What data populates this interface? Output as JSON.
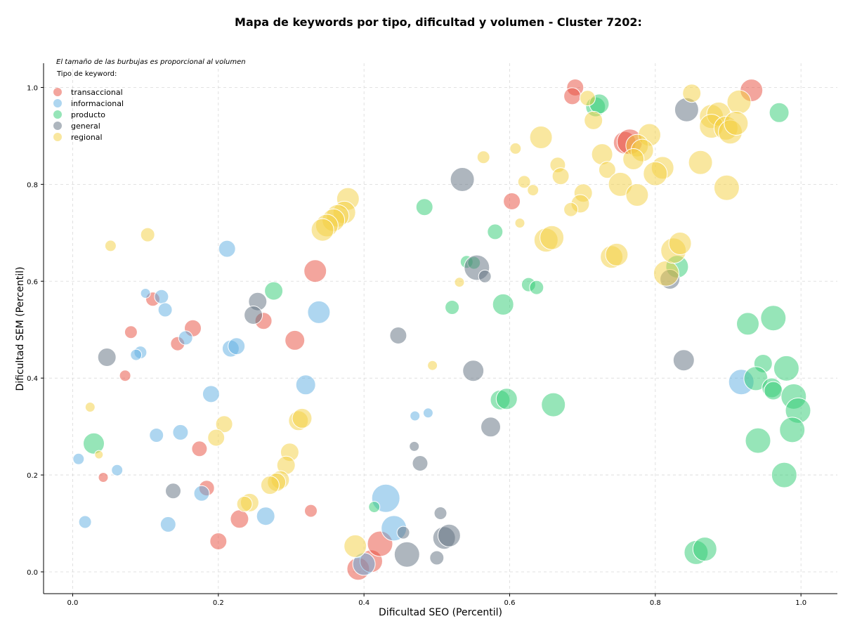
{
  "chart_data": {
    "type": "scatter",
    "title": "Mapa de keywords por tipo, dificultad y volumen - Cluster 7202:",
    "xlabel": "Dificultad SEO (Percentil)",
    "ylabel": "Dificultad SEM (Percentil)",
    "note": "El tamaño de las burbujas es proporcional al volumen",
    "legend_title": "Tipo de keyword:",
    "legend_position": "top-left",
    "grid": true,
    "xlim": [
      -0.04,
      1.05
    ],
    "ylim": [
      -0.045,
      1.05
    ],
    "x_ticks": [
      "0.0",
      "0.2",
      "0.4",
      "0.6",
      "0.8",
      "1.0"
    ],
    "y_ticks": [
      "0.0",
      "0.2",
      "0.4",
      "0.6",
      "0.8",
      "1.0"
    ],
    "series": [
      {
        "name": "transaccional",
        "color": "#e74c3c",
        "points": [
          [
            0.69,
            1.0,
            12
          ],
          [
            0.686,
            0.982,
            12
          ],
          [
            0.932,
            0.994,
            16
          ],
          [
            0.758,
            0.886,
            16
          ],
          [
            0.765,
            0.888,
            18
          ],
          [
            0.603,
            0.765,
            12
          ],
          [
            0.333,
            0.621,
            16
          ],
          [
            0.11,
            0.563,
            10
          ],
          [
            0.262,
            0.518,
            12
          ],
          [
            0.165,
            0.503,
            12
          ],
          [
            0.08,
            0.495,
            9
          ],
          [
            0.144,
            0.471,
            10
          ],
          [
            0.305,
            0.478,
            14
          ],
          [
            0.072,
            0.405,
            8
          ],
          [
            0.174,
            0.254,
            11
          ],
          [
            0.184,
            0.173,
            11
          ],
          [
            0.042,
            0.195,
            7
          ],
          [
            0.229,
            0.109,
            13
          ],
          [
            0.327,
            0.126,
            9
          ],
          [
            0.2,
            0.063,
            12
          ],
          [
            0.392,
            0.006,
            16
          ],
          [
            0.41,
            0.022,
            16
          ],
          [
            0.422,
            0.058,
            18
          ]
        ]
      },
      {
        "name": "informacional",
        "color": "#5dade2",
        "points": [
          [
            0.212,
            0.667,
            12
          ],
          [
            0.1,
            0.575,
            7
          ],
          [
            0.122,
            0.568,
            10
          ],
          [
            0.127,
            0.541,
            10
          ],
          [
            0.155,
            0.483,
            10
          ],
          [
            0.093,
            0.453,
            9
          ],
          [
            0.087,
            0.448,
            8
          ],
          [
            0.217,
            0.461,
            12
          ],
          [
            0.225,
            0.466,
            12
          ],
          [
            0.338,
            0.536,
            16
          ],
          [
            0.32,
            0.386,
            14
          ],
          [
            0.19,
            0.367,
            12
          ],
          [
            0.148,
            0.288,
            11
          ],
          [
            0.115,
            0.282,
            10
          ],
          [
            0.47,
            0.322,
            7
          ],
          [
            0.488,
            0.328,
            7
          ],
          [
            0.008,
            0.233,
            8
          ],
          [
            0.061,
            0.21,
            8
          ],
          [
            0.177,
            0.162,
            11
          ],
          [
            0.265,
            0.115,
            13
          ],
          [
            0.131,
            0.098,
            11
          ],
          [
            0.017,
            0.103,
            9
          ],
          [
            0.43,
            0.152,
            20
          ],
          [
            0.441,
            0.09,
            18
          ],
          [
            0.4,
            0.016,
            16
          ],
          [
            0.918,
            0.392,
            18
          ]
        ]
      },
      {
        "name": "producto",
        "color": "#2ecc71",
        "points": [
          [
            0.718,
            0.96,
            14
          ],
          [
            0.723,
            0.966,
            14
          ],
          [
            0.97,
            0.948,
            14
          ],
          [
            0.483,
            0.753,
            12
          ],
          [
            0.58,
            0.702,
            11
          ],
          [
            0.541,
            0.64,
            9
          ],
          [
            0.551,
            0.638,
            9
          ],
          [
            0.626,
            0.593,
            10
          ],
          [
            0.637,
            0.587,
            10
          ],
          [
            0.521,
            0.546,
            10
          ],
          [
            0.591,
            0.552,
            15
          ],
          [
            0.276,
            0.58,
            13
          ],
          [
            0.83,
            0.63,
            16
          ],
          [
            0.587,
            0.355,
            14
          ],
          [
            0.596,
            0.357,
            15
          ],
          [
            0.66,
            0.345,
            17
          ],
          [
            0.927,
            0.512,
            16
          ],
          [
            0.962,
            0.524,
            18
          ],
          [
            0.948,
            0.43,
            13
          ],
          [
            0.98,
            0.42,
            18
          ],
          [
            0.938,
            0.399,
            17
          ],
          [
            0.96,
            0.38,
            14
          ],
          [
            0.962,
            0.374,
            13
          ],
          [
            0.99,
            0.362,
            18
          ],
          [
            0.996,
            0.333,
            18
          ],
          [
            0.988,
            0.293,
            18
          ],
          [
            0.941,
            0.271,
            18
          ],
          [
            0.977,
            0.2,
            18
          ],
          [
            0.856,
            0.04,
            17
          ],
          [
            0.868,
            0.047,
            17
          ],
          [
            0.029,
            0.265,
            15
          ],
          [
            0.414,
            0.134,
            8
          ]
        ]
      },
      {
        "name": "general",
        "color": "#5d6d7e",
        "points": [
          [
            0.843,
            0.954,
            17
          ],
          [
            0.535,
            0.81,
            17
          ],
          [
            0.555,
            0.628,
            18
          ],
          [
            0.566,
            0.61,
            9
          ],
          [
            0.82,
            0.604,
            14
          ],
          [
            0.254,
            0.558,
            13
          ],
          [
            0.248,
            0.53,
            13
          ],
          [
            0.447,
            0.488,
            12
          ],
          [
            0.55,
            0.415,
            15
          ],
          [
            0.047,
            0.443,
            13
          ],
          [
            0.839,
            0.437,
            15
          ],
          [
            0.574,
            0.299,
            14
          ],
          [
            0.469,
            0.259,
            7
          ],
          [
            0.477,
            0.224,
            11
          ],
          [
            0.138,
            0.167,
            11
          ],
          [
            0.505,
            0.121,
            9
          ],
          [
            0.454,
            0.081,
            9
          ],
          [
            0.51,
            0.07,
            16
          ],
          [
            0.517,
            0.075,
            16
          ],
          [
            0.459,
            0.036,
            18
          ],
          [
            0.5,
            0.029,
            10
          ]
        ]
      },
      {
        "name": "regional",
        "color": "#f4d03f",
        "points": [
          [
            0.707,
            0.978,
            11
          ],
          [
            0.85,
            0.988,
            13
          ],
          [
            0.915,
            0.97,
            17
          ],
          [
            0.715,
            0.932,
            13
          ],
          [
            0.643,
            0.897,
            16
          ],
          [
            0.877,
            0.94,
            17
          ],
          [
            0.887,
            0.945,
            17
          ],
          [
            0.877,
            0.92,
            17
          ],
          [
            0.897,
            0.916,
            17
          ],
          [
            0.903,
            0.908,
            17
          ],
          [
            0.911,
            0.926,
            17
          ],
          [
            0.792,
            0.902,
            16
          ],
          [
            0.775,
            0.88,
            16
          ],
          [
            0.782,
            0.87,
            16
          ],
          [
            0.77,
            0.852,
            15
          ],
          [
            0.727,
            0.862,
            15
          ],
          [
            0.734,
            0.83,
            12
          ],
          [
            0.81,
            0.834,
            16
          ],
          [
            0.8,
            0.822,
            17
          ],
          [
            0.862,
            0.845,
            17
          ],
          [
            0.564,
            0.856,
            9
          ],
          [
            0.608,
            0.874,
            8
          ],
          [
            0.666,
            0.84,
            11
          ],
          [
            0.67,
            0.817,
            12
          ],
          [
            0.62,
            0.805,
            9
          ],
          [
            0.632,
            0.788,
            8
          ],
          [
            0.752,
            0.8,
            17
          ],
          [
            0.775,
            0.778,
            16
          ],
          [
            0.898,
            0.793,
            18
          ],
          [
            0.701,
            0.782,
            13
          ],
          [
            0.697,
            0.76,
            13
          ],
          [
            0.684,
            0.748,
            10
          ],
          [
            0.614,
            0.72,
            7
          ],
          [
            0.65,
            0.685,
            17
          ],
          [
            0.658,
            0.69,
            17
          ],
          [
            0.74,
            0.65,
            16
          ],
          [
            0.747,
            0.655,
            16
          ],
          [
            0.815,
            0.616,
            18
          ],
          [
            0.825,
            0.663,
            18
          ],
          [
            0.834,
            0.678,
            16
          ],
          [
            0.378,
            0.77,
            16
          ],
          [
            0.373,
            0.742,
            16
          ],
          [
            0.364,
            0.735,
            16
          ],
          [
            0.358,
            0.726,
            16
          ],
          [
            0.349,
            0.715,
            16
          ],
          [
            0.343,
            0.706,
            16
          ],
          [
            0.103,
            0.696,
            10
          ],
          [
            0.052,
            0.673,
            8
          ],
          [
            0.531,
            0.598,
            7
          ],
          [
            0.494,
            0.426,
            7
          ],
          [
            0.208,
            0.305,
            12
          ],
          [
            0.197,
            0.277,
            12
          ],
          [
            0.31,
            0.312,
            14
          ],
          [
            0.315,
            0.317,
            14
          ],
          [
            0.298,
            0.247,
            13
          ],
          [
            0.293,
            0.22,
            13
          ],
          [
            0.285,
            0.19,
            13
          ],
          [
            0.28,
            0.185,
            13
          ],
          [
            0.271,
            0.179,
            13
          ],
          [
            0.243,
            0.143,
            13
          ],
          [
            0.236,
            0.14,
            11
          ],
          [
            0.024,
            0.34,
            7
          ],
          [
            0.036,
            0.242,
            6
          ],
          [
            0.388,
            0.053,
            16
          ]
        ]
      }
    ]
  }
}
